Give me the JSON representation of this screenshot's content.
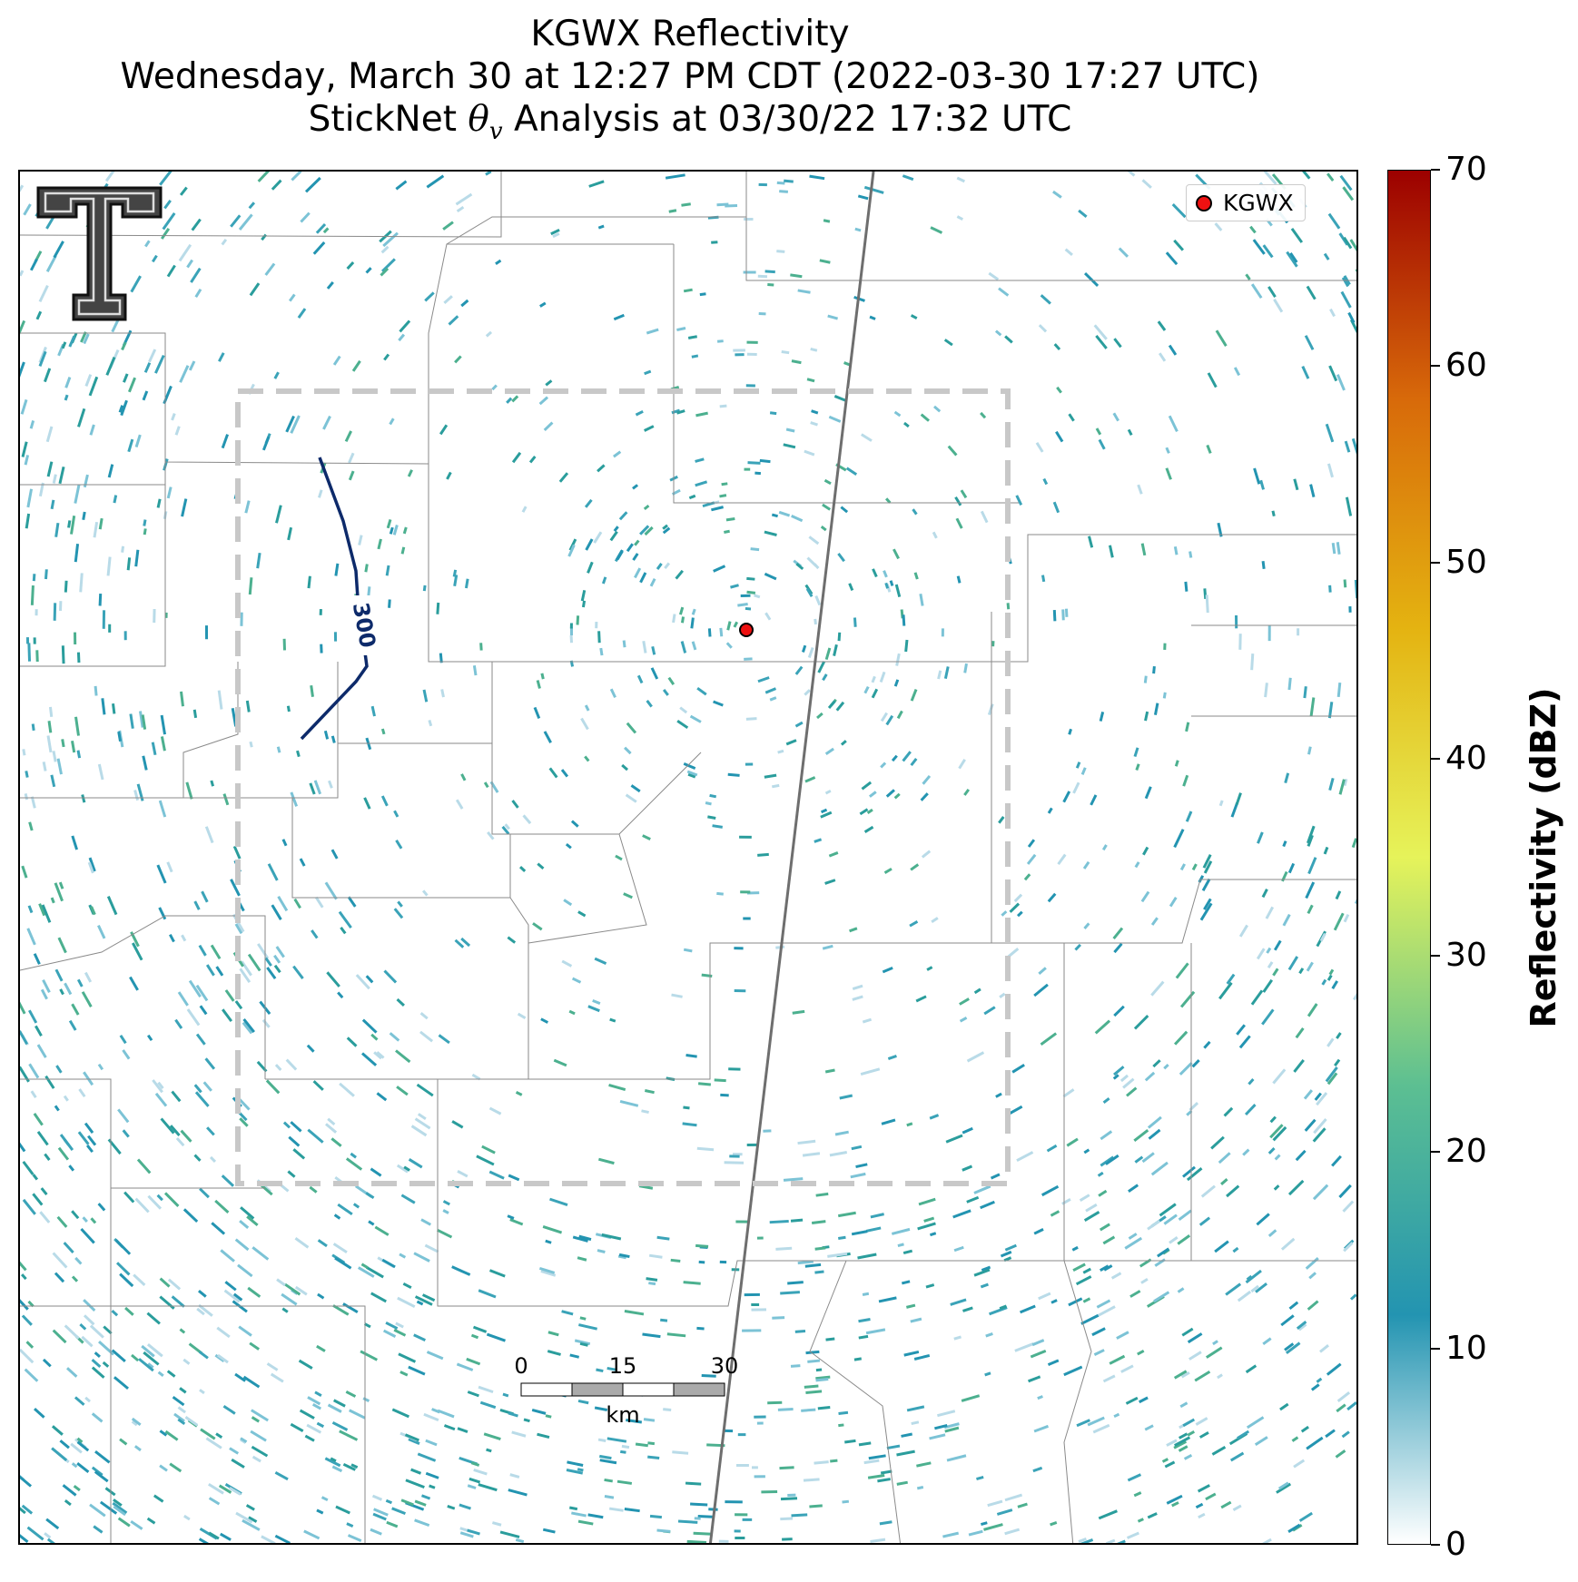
{
  "title": {
    "line1": "KGWX Reflectivity",
    "line2": "Wednesday, March 30 at 12:27 PM CDT (2022-03-30 17:27 UTC)",
    "line3_prefix": "StickNet ",
    "line3_symbol": "θ",
    "line3_subscript": "v",
    "line3_suffix": " Analysis at 03/30/22 17:32 UTC"
  },
  "radar": {
    "site": "KGWX",
    "product": "Reflectivity",
    "marker_color": "#ee1111"
  },
  "legend": {
    "label": "KGWX"
  },
  "colorbar": {
    "label": "Reflectivity (dBZ)",
    "ticks": [
      "70",
      "60",
      "50",
      "40",
      "30",
      "20",
      "10",
      "0"
    ],
    "range": [
      0,
      70
    ],
    "colors": [
      "#ffffff",
      "#2394b1",
      "#5cbf92",
      "#e6f35a",
      "#e4b311",
      "#d86a0a",
      "#9c0000"
    ]
  },
  "contour": {
    "label": "300",
    "color": "#0d2a6a"
  },
  "analysis_box": {
    "color": "#c8c8c8",
    "style": "dashed"
  },
  "scale_bar": {
    "ticks": [
      "0",
      "15",
      "30"
    ],
    "unit": "km"
  },
  "logo": {
    "name": "texas-tech-double-t-logo"
  }
}
